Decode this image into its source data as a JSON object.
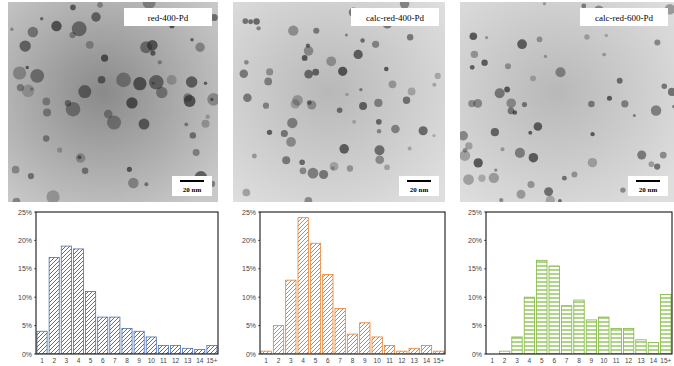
{
  "chart_data": [
    {
      "type": "bar",
      "title": "red-400-Pd",
      "annotations": [
        "20 nm"
      ],
      "categories": [
        "1",
        "2",
        "3",
        "4",
        "5",
        "6",
        "7",
        "8",
        "9",
        "10",
        "11",
        "12",
        "13",
        "14",
        "15+"
      ],
      "values": [
        4,
        17,
        19,
        18.5,
        11,
        6.5,
        6.5,
        4.5,
        4,
        3,
        1.5,
        1.5,
        1,
        0.8,
        1.5
      ],
      "color": "#4a6fb5",
      "ylim": [
        0,
        25
      ],
      "yticks": [
        {
          "value": 0,
          "label": "0%"
        },
        {
          "value": 5,
          "label": "5%"
        },
        {
          "value": 10,
          "label": "10%"
        },
        {
          "value": 15,
          "label": "15%"
        },
        {
          "value": 20,
          "label": "20%"
        },
        {
          "value": 25,
          "label": "25%"
        }
      ],
      "grid": false
    },
    {
      "type": "bar",
      "title": "calc-red-400-Pd",
      "annotations": [
        "20 nm"
      ],
      "categories": [
        "1",
        "2",
        "3",
        "4",
        "5",
        "6",
        "7",
        "8",
        "9",
        "10",
        "11",
        "12",
        "13",
        "14",
        "15+"
      ],
      "values": [
        0.5,
        5,
        13,
        24,
        19.5,
        14,
        8,
        3.5,
        5.5,
        3,
        1.5,
        0.5,
        1,
        1.5,
        0.5
      ],
      "color": "#e8812b",
      "ylim": [
        0,
        25
      ],
      "yticks": [
        {
          "value": 0,
          "label": "0%"
        },
        {
          "value": 5,
          "label": "5%"
        },
        {
          "value": 10,
          "label": "10%"
        },
        {
          "value": 15,
          "label": "15%"
        },
        {
          "value": 20,
          "label": "20%"
        },
        {
          "value": 25,
          "label": "25%"
        }
      ],
      "grid": false
    },
    {
      "type": "bar",
      "title": "calc-red-600-Pd",
      "annotations": [
        "20 nm"
      ],
      "categories": [
        "1",
        "2",
        "3",
        "4",
        "5",
        "6",
        "7",
        "8",
        "9",
        "10",
        "11",
        "12",
        "13",
        "14",
        "15+"
      ],
      "values": [
        0,
        0.5,
        3,
        10,
        16.5,
        15.5,
        8.5,
        9.5,
        6,
        6.5,
        4.5,
        4.5,
        2.5,
        2,
        10.5
      ],
      "color": "#7db83a",
      "ylim": [
        0,
        25
      ],
      "yticks": [
        {
          "value": 0,
          "label": "0%"
        },
        {
          "value": 5,
          "label": "5%"
        },
        {
          "value": 10,
          "label": "10%"
        },
        {
          "value": 15,
          "label": "15%"
        },
        {
          "value": 20,
          "label": "20%"
        },
        {
          "value": 25,
          "label": "25%"
        }
      ],
      "grid": false
    }
  ]
}
